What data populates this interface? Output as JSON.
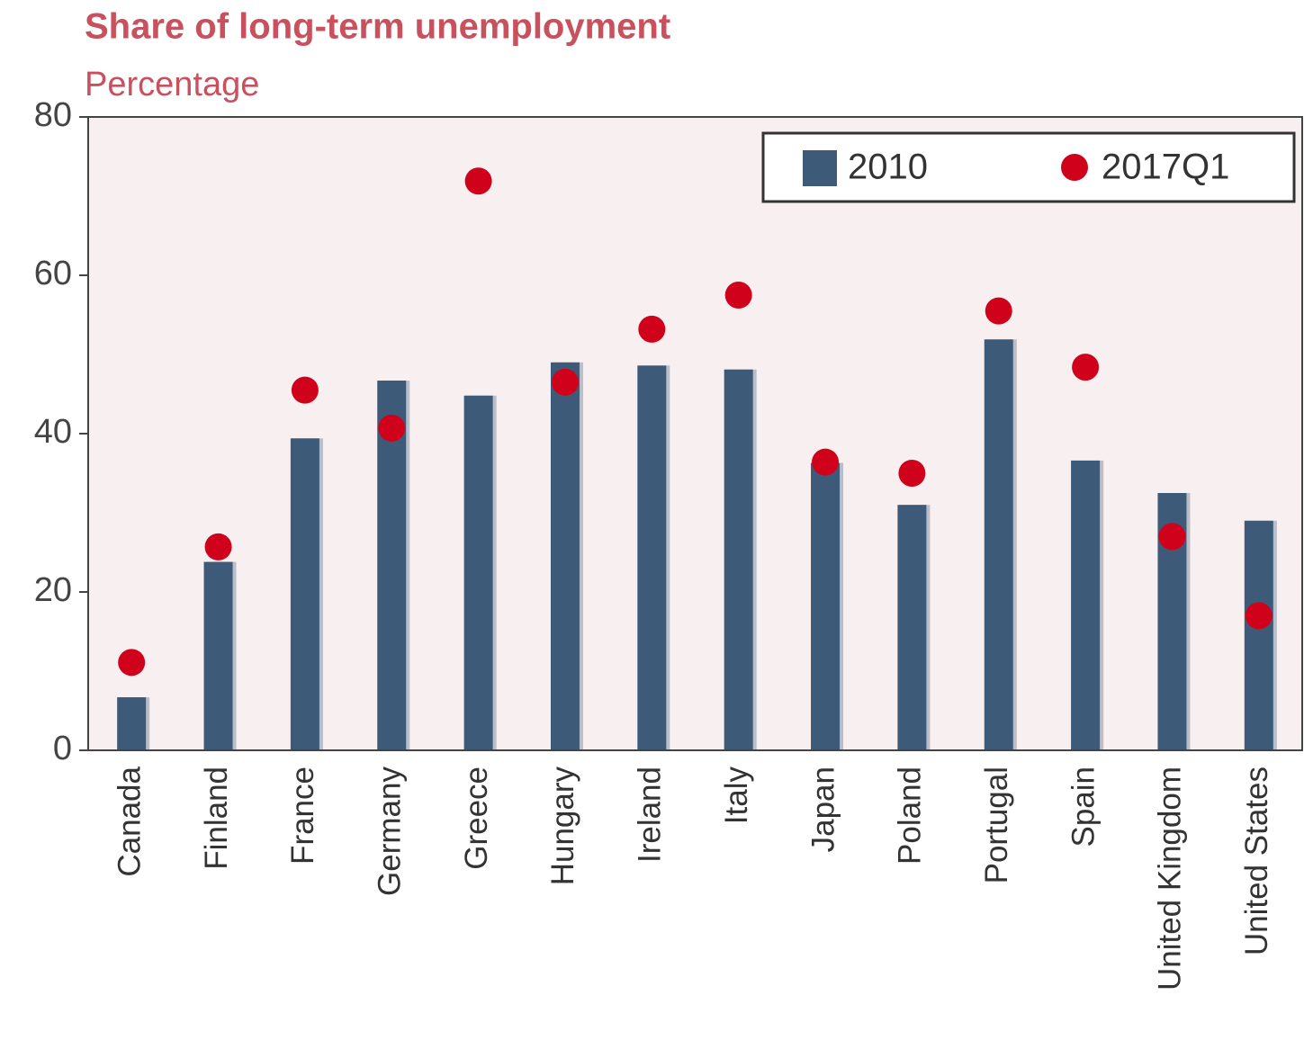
{
  "chart_data": {
    "type": "bar_dot",
    "title": "Share of long-term unemployment",
    "subtitle": "Percentage",
    "categories": [
      "Canada",
      "Finland",
      "France",
      "Germany",
      "Greece",
      "Hungary",
      "Ireland",
      "Italy",
      "Japan",
      "Poland",
      "Portugal",
      "Spain",
      "United Kingdom",
      "United States"
    ],
    "series": [
      {
        "name": "2010",
        "color": "#3d5a78",
        "values": [
          6.7,
          23.8,
          39.4,
          46.7,
          44.8,
          49,
          48.6,
          48.1,
          36.3,
          31,
          51.9,
          36.6,
          32.5,
          29
        ]
      },
      {
        "name": "2017Q1",
        "color": "#d0021b",
        "values": [
          11.1,
          25.7,
          45.5,
          40.7,
          71.9,
          46.5,
          53.2,
          57.5,
          36.4,
          35,
          55.5,
          48.4,
          27,
          17
        ]
      }
    ],
    "ylim": [
      0,
      80
    ],
    "yticks": [
      0,
      20,
      40,
      60,
      80
    ],
    "legend": "top-right"
  }
}
